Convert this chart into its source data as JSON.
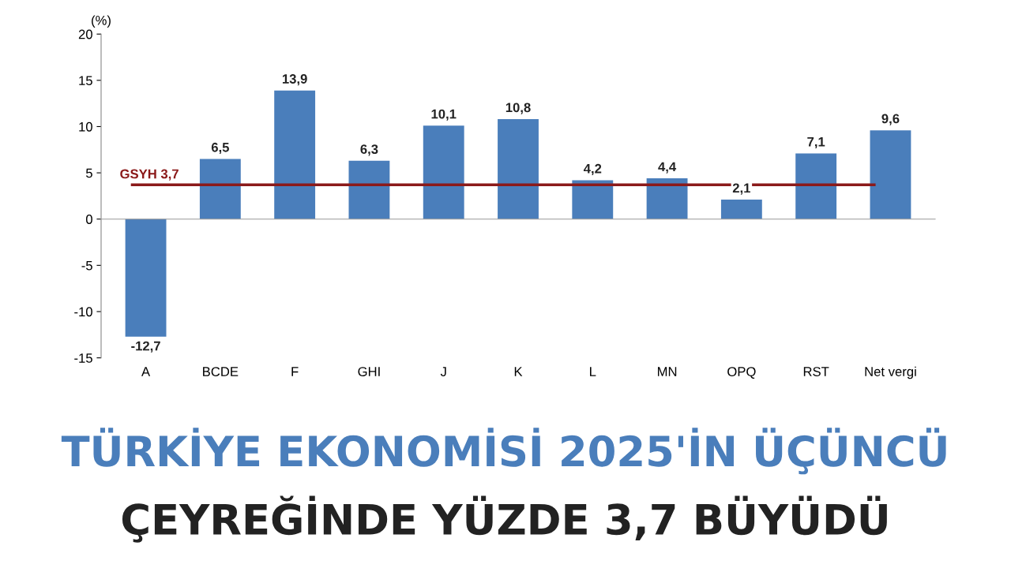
{
  "chart_data": {
    "type": "bar",
    "title": "TÜRKİYE EKONOMİSİ 2025'İN ÜÇÜNCÜ",
    "subtitle": "ÇEYREĞİNDE YÜZDE 3,7 BÜYÜDÜ",
    "ylabel": "(%)",
    "categories": [
      "A",
      "BCDE",
      "F",
      "GHI",
      "J",
      "K",
      "L",
      "MN",
      "OPQ",
      "RST",
      "Net vergi"
    ],
    "values": [
      -12.7,
      6.5,
      13.9,
      6.3,
      10.1,
      10.8,
      4.2,
      4.4,
      2.1,
      7.1,
      9.6
    ],
    "value_labels": [
      "-12,7",
      "6,5",
      "13,9",
      "6,3",
      "10,1",
      "10,8",
      "4,2",
      "4,4",
      "2,1",
      "7,1",
      "9,6"
    ],
    "color": "#4a7ebb",
    "ylim": [
      -15,
      20
    ],
    "yticks": [
      -15,
      -10,
      -5,
      0,
      5,
      10,
      15,
      20
    ],
    "legend": false,
    "ref_lines": [
      {
        "axis": "y",
        "value": 3.7,
        "label": "GSYH 3,7",
        "color": "#8b1a1a"
      }
    ]
  }
}
